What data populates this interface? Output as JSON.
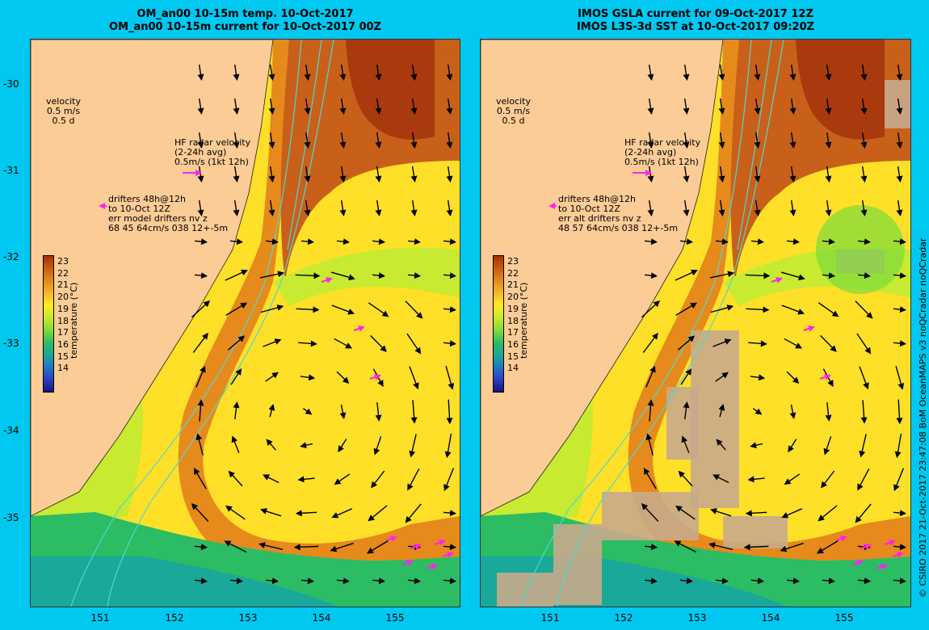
{
  "left_panel": {
    "title_line1": "OM_an00 10-15m temp. 10-Oct-2017",
    "title_line2": "OM_an00 10-15m current for 10-Oct-2017 00Z",
    "velocity_key": [
      "velocity",
      "0.5 m/s",
      "0.5 d"
    ],
    "hf_radar": [
      "HF radar velocity",
      "(2-24h avg)",
      "0.5m/s (1kt 12h)"
    ],
    "drifters": [
      "drifters 48h@12h",
      "to 10-Oct 12Z",
      "err model drifters nv z",
      "68 45 64cm/s 038 12+-5m"
    ]
  },
  "right_panel": {
    "title_line1": "IMOS GSLA current for 09-Oct-2017 12Z",
    "title_line2": "IMOS L3S-3d SST at 10-Oct-2017 09:20Z",
    "velocity_key": [
      "velocity",
      "0.5 m/s",
      "0.5 d"
    ],
    "hf_radar": [
      "HF radar velocity",
      "(2-24h avg)",
      "0.5m/s (1kt 12h)"
    ],
    "drifters": [
      "drifters 48h@12h",
      "to 10-Oct 12Z",
      "err alt drifters nv z",
      "48 57 64cm/s 038 12+-5m"
    ]
  },
  "axes": {
    "lat_ticks": [
      "-30",
      "-31",
      "-32",
      "-33",
      "-34",
      "-35"
    ],
    "lon_ticks": [
      "151",
      "152",
      "153",
      "154",
      "155"
    ]
  },
  "colorbar": {
    "label": "temperature (°C)",
    "ticks": [
      "23",
      "22",
      "21",
      "20",
      "19",
      "18",
      "17",
      "16",
      "15",
      "14"
    ],
    "colors": [
      "#a8320a",
      "#c75a12",
      "#e08a1e",
      "#f2b62a",
      "#ffea20",
      "#c8ea30",
      "#7adc3a",
      "#2cbc64",
      "#1aa89a",
      "#1c78c0",
      "#2a3ec8",
      "#15157a"
    ]
  },
  "credit": "© CSIRO 2017  21-Oct-2017 23:47:08 BoM OceanMAPS v3 noQCradar noQCradar",
  "colors": {
    "background": "#00c8f0",
    "land": "#fccc97",
    "isobath": "#4fd8d0",
    "drifter_arrow": "#ff22ee",
    "cloud": "#c8aa8c"
  }
}
